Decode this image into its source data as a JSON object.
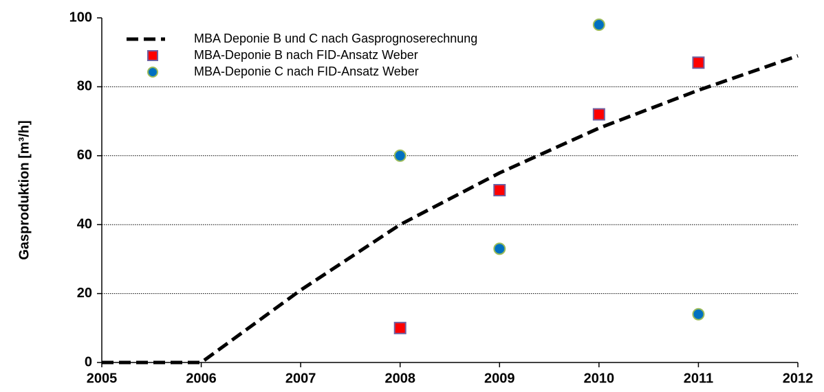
{
  "chart_data": {
    "type": "line",
    "ylabel": "Gasproduktion [m³/h]",
    "xlim": [
      2005,
      2012
    ],
    "xticks": [
      2005,
      2006,
      2007,
      2008,
      2009,
      2010,
      2011,
      2012
    ],
    "ylim": [
      0,
      100
    ],
    "yticks": [
      0,
      20,
      40,
      60,
      80,
      100
    ],
    "grid": true,
    "legend": "upper left",
    "series": [
      {
        "name": "MBA Deponie B und C nach Gasprognoserechnung",
        "type": "line",
        "color": "#000000",
        "x": [
          2005,
          2006,
          2007,
          2008,
          2009,
          2010,
          2011,
          2012
        ],
        "values": [
          0,
          0,
          21,
          40,
          55,
          68,
          79,
          89
        ]
      },
      {
        "name": "MBA-Deponie B nach FID-Ansatz Weber",
        "type": "scatter",
        "marker": "square",
        "color": "#ff0000",
        "edgecolor": "#7060a0",
        "x": [
          2008,
          2009,
          2010,
          2011
        ],
        "values": [
          10,
          50,
          72,
          87
        ]
      },
      {
        "name": "MBA-Deponie C nach FID-Ansatz Weber",
        "type": "scatter",
        "marker": "circle",
        "color": "#0070c0",
        "edgecolor": "#9bbb59",
        "x": [
          2008,
          2009,
          2010,
          2011
        ],
        "values": [
          60,
          33,
          98,
          14
        ]
      }
    ]
  }
}
